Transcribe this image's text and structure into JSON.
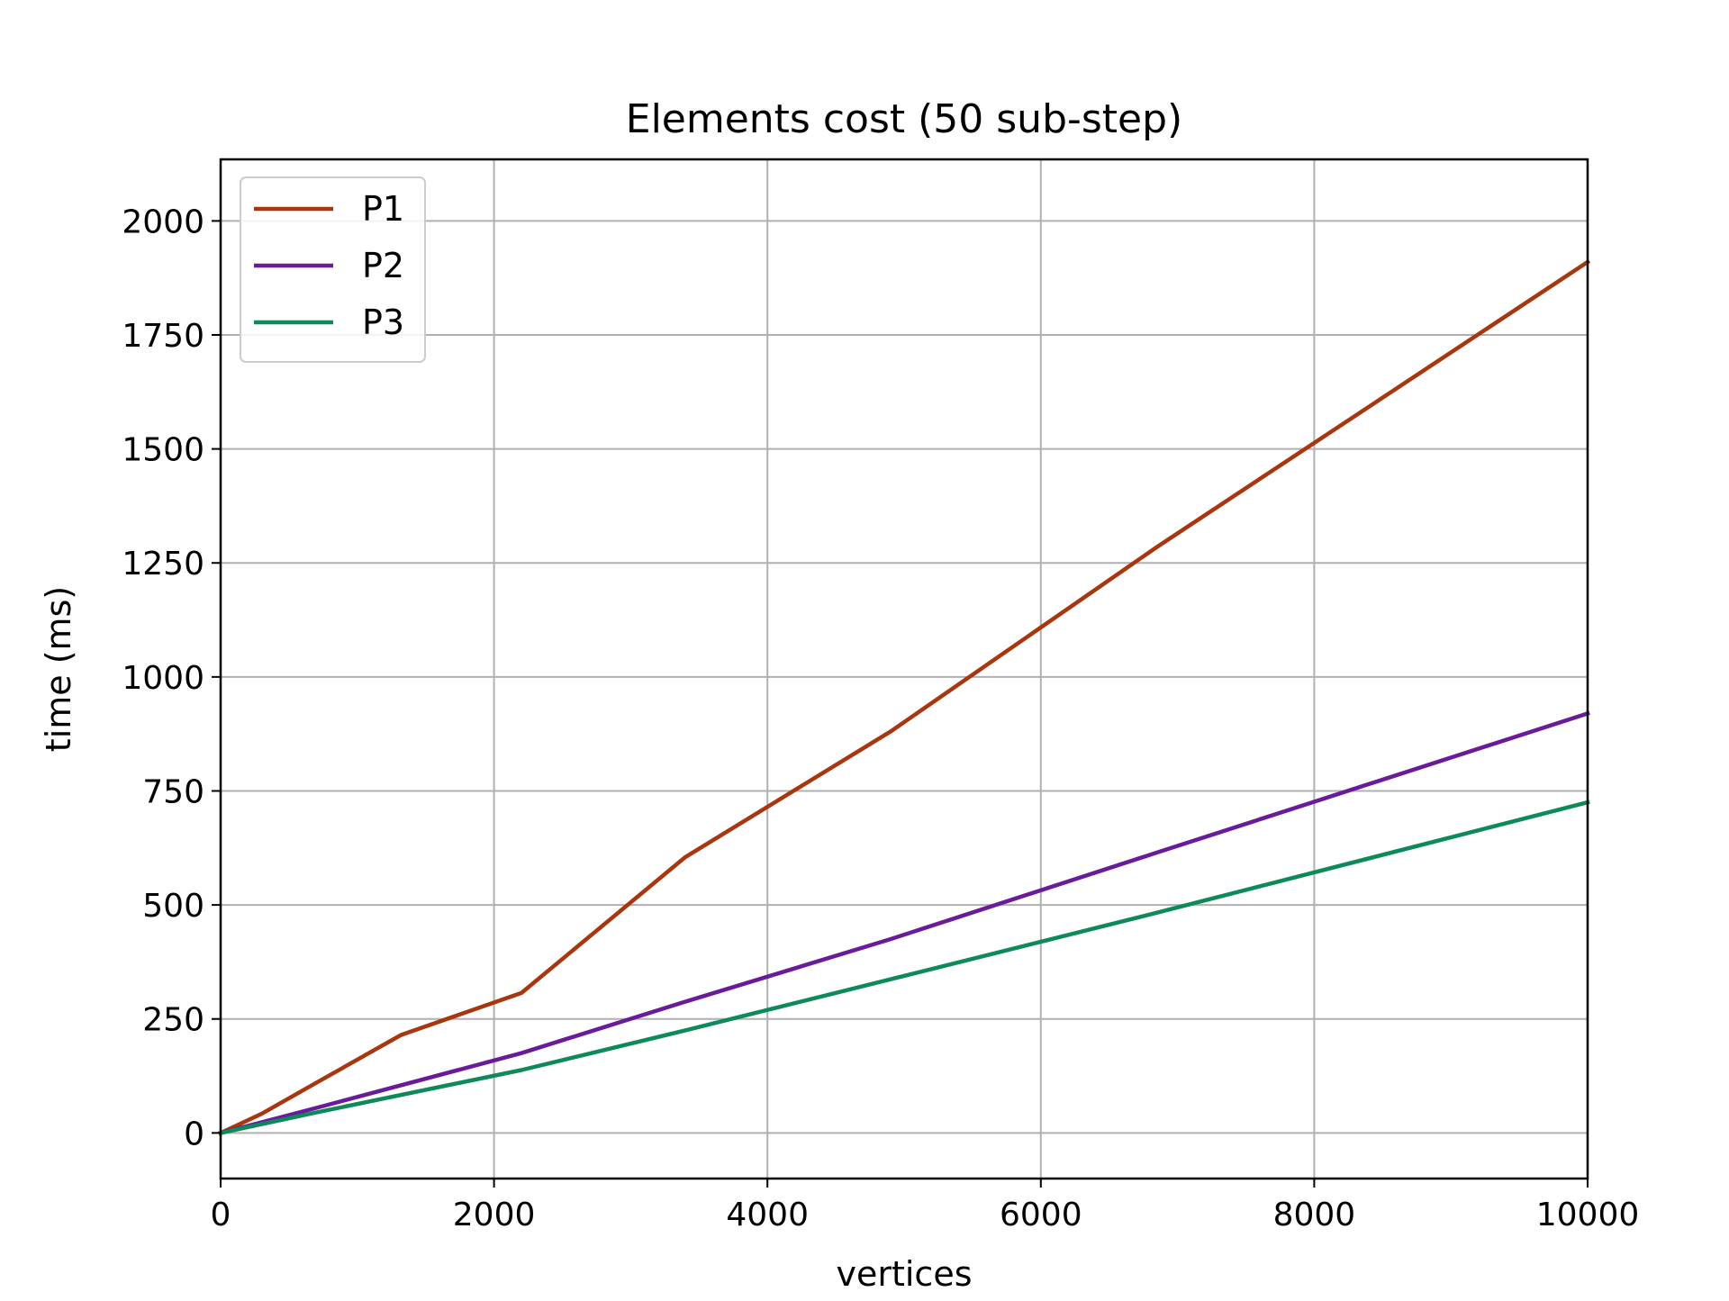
{
  "chart_data": {
    "type": "line",
    "title": "Elements cost (50 sub-step)",
    "xlabel": "vertices",
    "ylabel": "time (ms)",
    "xlim": [
      0,
      10000
    ],
    "ylim": [
      -100,
      2135
    ],
    "xticks": [
      0,
      2000,
      4000,
      6000,
      8000,
      10000
    ],
    "xtick_labels": [
      "0",
      "2000",
      "4000",
      "6000",
      "8000",
      "10000"
    ],
    "yticks": [
      0,
      250,
      500,
      750,
      1000,
      1250,
      1500,
      1750,
      2000
    ],
    "ytick_labels": [
      "0",
      "250",
      "500",
      "750",
      "1000",
      "1250",
      "1500",
      "1750",
      "2000"
    ],
    "grid": true,
    "legend": "top-left",
    "series": [
      {
        "name": "P1",
        "color": "#a8360f",
        "points": [
          [
            0,
            0
          ],
          [
            300,
            42
          ],
          [
            700,
            110
          ],
          [
            1320,
            215
          ],
          [
            2200,
            307
          ],
          [
            3400,
            605
          ],
          [
            4900,
            880
          ],
          [
            6850,
            1285
          ],
          [
            10000,
            1910
          ]
        ]
      },
      {
        "name": "P2",
        "color": "#6a1b9a",
        "points": [
          [
            0,
            0
          ],
          [
            700,
            55
          ],
          [
            2200,
            175
          ],
          [
            3400,
            288
          ],
          [
            4900,
            425
          ],
          [
            6850,
            615
          ],
          [
            10000,
            920
          ]
        ]
      },
      {
        "name": "P3",
        "color": "#0d8a5a",
        "points": [
          [
            0,
            0
          ],
          [
            700,
            45
          ],
          [
            2200,
            138
          ],
          [
            3400,
            225
          ],
          [
            4900,
            337
          ],
          [
            6850,
            483
          ],
          [
            10000,
            725
          ]
        ]
      }
    ]
  }
}
